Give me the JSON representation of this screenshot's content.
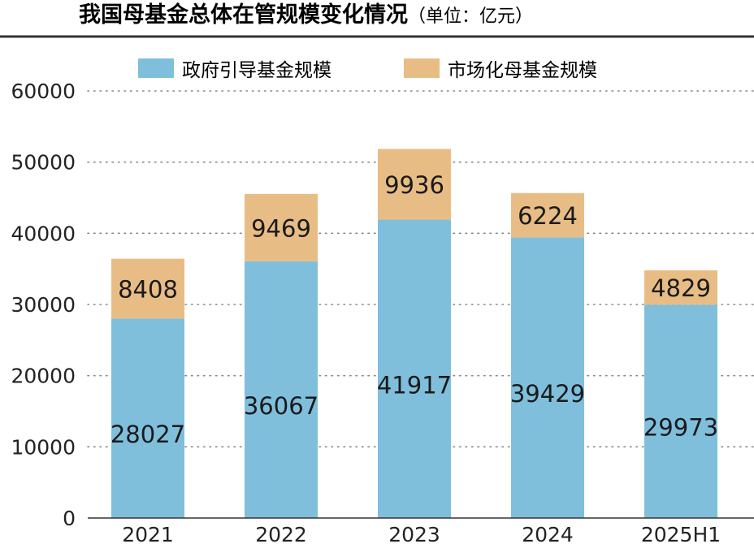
{
  "chart_data": {
    "type": "bar",
    "stacked": true,
    "title": "我国母基金总体在管规模变化情况",
    "unit_note": "（单位：亿元）",
    "categories": [
      "2021",
      "2022",
      "2023",
      "2024",
      "2025H1"
    ],
    "series": [
      {
        "name": "政府引导基金规模",
        "color": "#7fbfdc",
        "values": [
          28027,
          36067,
          41917,
          39429,
          29973
        ]
      },
      {
        "name": "市场化母基金规模",
        "color": "#e8bd85",
        "values": [
          8408,
          9469,
          9936,
          6224,
          4829
        ]
      }
    ],
    "ylim": [
      0,
      60000
    ],
    "yticks": [
      "0",
      "10000",
      "20000",
      "30000",
      "40000",
      "50000",
      "60000"
    ],
    "grid": true,
    "legend_position": "top"
  }
}
